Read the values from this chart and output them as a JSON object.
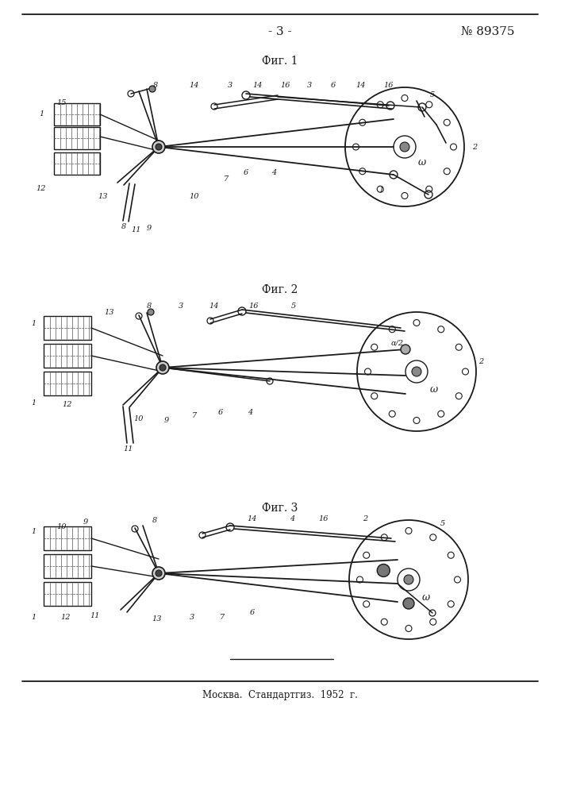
{
  "page_number": "- 3 -",
  "patent_number": "№ 89375",
  "fig_labels": [
    "Фиг. 1",
    "Фиг. 2",
    "Фиг. 3"
  ],
  "footer_text": "Москва.  Стандартгиз.  1952  г.",
  "bg_color": "#ffffff",
  "line_color": "#1a1a1a",
  "text_color": "#1a1a1a"
}
